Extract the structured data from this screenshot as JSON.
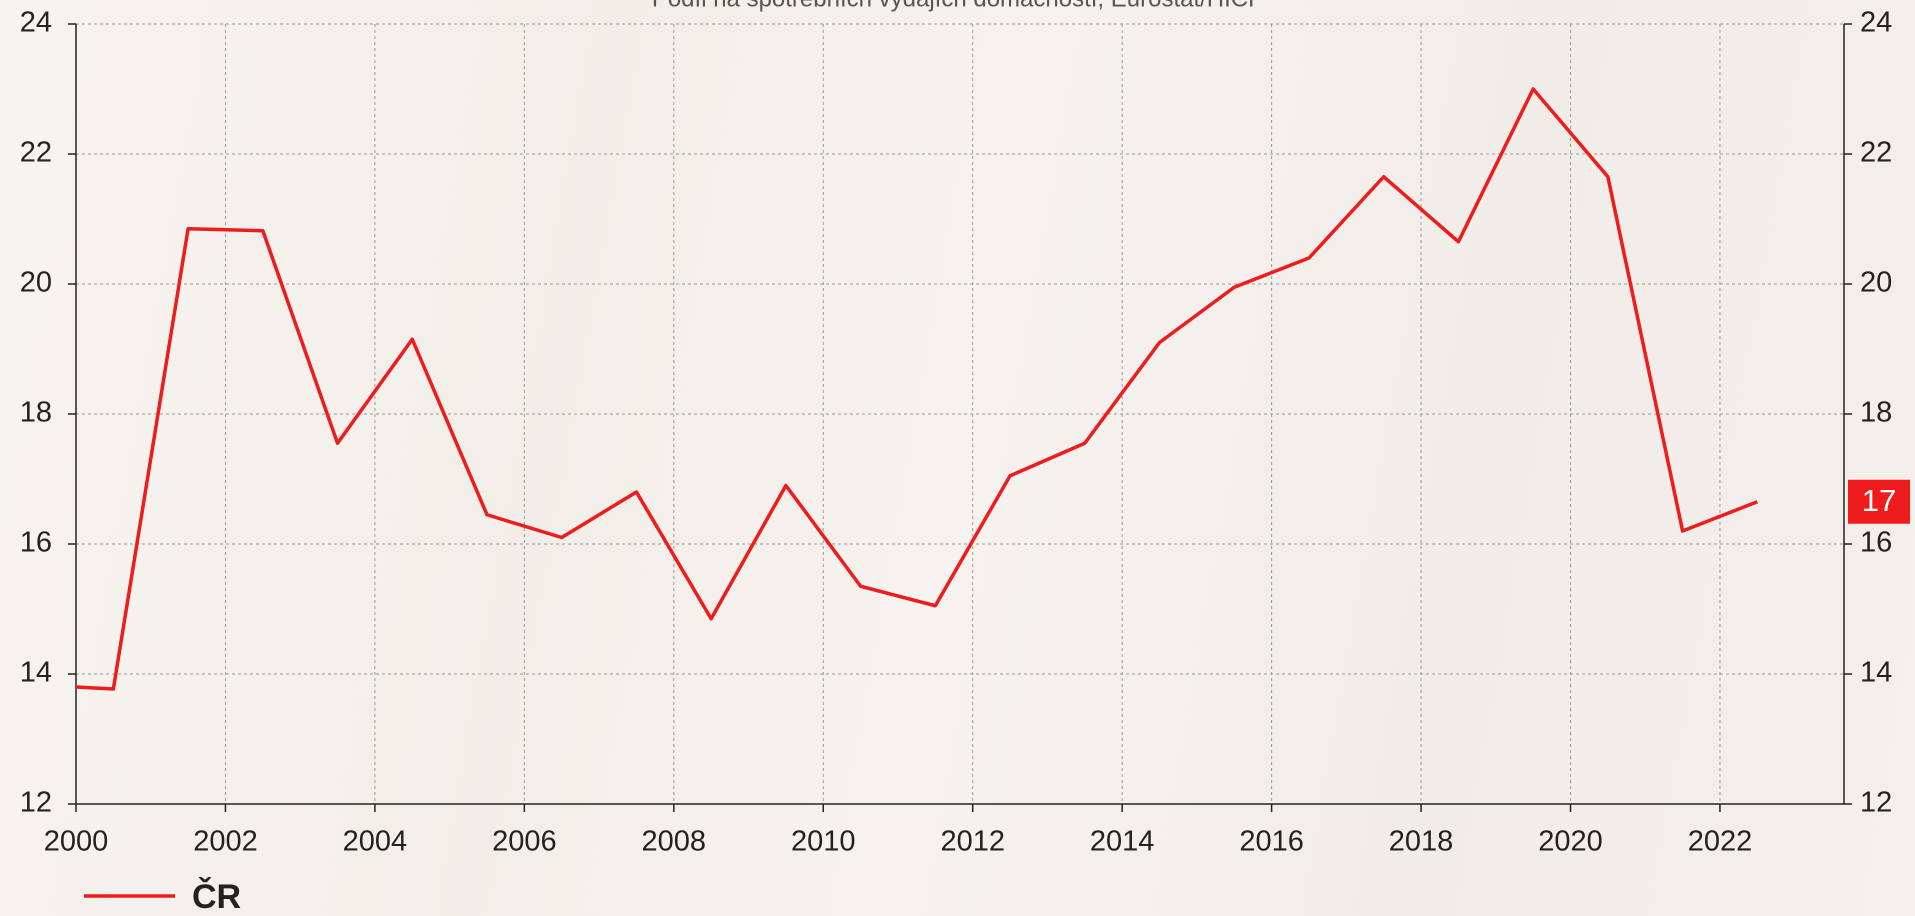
{
  "chart_data": {
    "type": "line",
    "subtitle": "Podíl na spotřebních výdajích domácností, Eurostat/HICP",
    "x": [
      2000,
      2000.5,
      2001.5,
      2002.5,
      2003.5,
      2004.5,
      2005.5,
      2006.5,
      2007.5,
      2008.5,
      2009.5,
      2010.5,
      2011.5,
      2012.5,
      2013.5,
      2014.5,
      2015.5,
      2016.5,
      2017.5,
      2018.5,
      2019.5,
      2020.5,
      2021.5,
      2022.5
    ],
    "series": [
      {
        "name": "ČR",
        "color": "#ee1c1c",
        "values": [
          13.8,
          13.77,
          20.85,
          20.82,
          17.55,
          19.15,
          16.45,
          16.1,
          16.8,
          14.85,
          16.9,
          15.35,
          15.05,
          17.05,
          17.55,
          19.1,
          19.95,
          20.4,
          21.65,
          20.65,
          23.0,
          21.65,
          16.2,
          16.65
        ],
        "value_labels": [
          null,
          null,
          null,
          null,
          null,
          null,
          null,
          null,
          null,
          null,
          null,
          null,
          null,
          null,
          null,
          null,
          null,
          null,
          null,
          null,
          null,
          null,
          null,
          "17"
        ]
      }
    ],
    "xlim": [
      2000,
      2023.66
    ],
    "xticks": [
      2000,
      2002,
      2004,
      2006,
      2008,
      2010,
      2012,
      2014,
      2016,
      2018,
      2020,
      2022
    ],
    "ylim": [
      12,
      24
    ],
    "yticks": [
      12,
      14,
      16,
      18,
      20,
      22,
      24
    ],
    "grid": true,
    "legend": "bottom-left",
    "right_axis": true
  }
}
